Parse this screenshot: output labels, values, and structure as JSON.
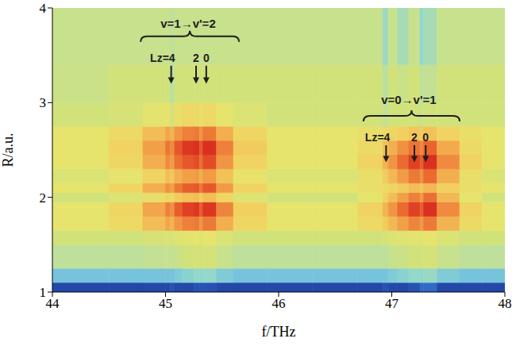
{
  "chart_data": {
    "type": "heatmap",
    "xlabel": "f/THz",
    "ylabel": "R/a.u.",
    "xlim": [
      44,
      48
    ],
    "ylim": [
      1,
      4
    ],
    "xticks": [
      44,
      45,
      46,
      47,
      48
    ],
    "yticks": [
      1,
      2,
      3,
      4
    ],
    "zlim": [
      0,
      1
    ],
    "x_edges": [
      44.0,
      44.5,
      44.8,
      45.0,
      45.04,
      45.08,
      45.15,
      45.25,
      45.3,
      45.33,
      45.45,
      45.6,
      45.9,
      46.3,
      46.7,
      46.92,
      46.97,
      47.05,
      47.15,
      47.25,
      47.28,
      47.4,
      47.6,
      47.8,
      48.0
    ],
    "y_edges": [
      1.0,
      1.1,
      1.25,
      1.5,
      1.65,
      1.8,
      1.95,
      2.05,
      2.15,
      2.3,
      2.45,
      2.6,
      2.75,
      3.0,
      3.4,
      4.0
    ],
    "cells": [
      [
        0.08,
        0.08,
        0.08,
        0.08,
        0.1,
        0.08,
        0.08,
        0.1,
        0.1,
        0.1,
        0.08,
        0.08,
        0.08,
        0.08,
        0.08,
        0.1,
        0.08,
        0.08,
        0.1,
        0.14,
        0.14,
        0.08,
        0.08,
        0.08
      ],
      [
        0.3,
        0.3,
        0.3,
        0.3,
        0.3,
        0.32,
        0.34,
        0.36,
        0.35,
        0.36,
        0.32,
        0.3,
        0.3,
        0.3,
        0.3,
        0.3,
        0.32,
        0.34,
        0.36,
        0.35,
        0.37,
        0.32,
        0.3,
        0.3
      ],
      [
        0.45,
        0.45,
        0.46,
        0.47,
        0.46,
        0.48,
        0.5,
        0.51,
        0.5,
        0.51,
        0.47,
        0.45,
        0.45,
        0.45,
        0.45,
        0.45,
        0.47,
        0.48,
        0.5,
        0.49,
        0.51,
        0.47,
        0.45,
        0.45
      ],
      [
        0.5,
        0.5,
        0.51,
        0.52,
        0.51,
        0.53,
        0.54,
        0.55,
        0.53,
        0.55,
        0.52,
        0.5,
        0.5,
        0.5,
        0.5,
        0.51,
        0.52,
        0.53,
        0.54,
        0.53,
        0.55,
        0.52,
        0.5,
        0.5
      ],
      [
        0.55,
        0.59,
        0.66,
        0.71,
        0.68,
        0.74,
        0.78,
        0.79,
        0.74,
        0.79,
        0.69,
        0.6,
        0.55,
        0.55,
        0.59,
        0.63,
        0.67,
        0.72,
        0.77,
        0.73,
        0.79,
        0.68,
        0.59,
        0.55
      ],
      [
        0.55,
        0.6,
        0.71,
        0.78,
        0.75,
        0.84,
        0.89,
        0.91,
        0.84,
        0.91,
        0.77,
        0.62,
        0.55,
        0.55,
        0.61,
        0.68,
        0.74,
        0.82,
        0.89,
        0.84,
        0.93,
        0.76,
        0.61,
        0.55
      ],
      [
        0.5,
        0.52,
        0.57,
        0.6,
        0.59,
        0.63,
        0.65,
        0.66,
        0.63,
        0.66,
        0.6,
        0.53,
        0.5,
        0.5,
        0.55,
        0.61,
        0.66,
        0.72,
        0.78,
        0.73,
        0.81,
        0.67,
        0.55,
        0.5
      ],
      [
        0.55,
        0.6,
        0.69,
        0.75,
        0.72,
        0.79,
        0.84,
        0.85,
        0.79,
        0.85,
        0.73,
        0.61,
        0.55,
        0.55,
        0.57,
        0.59,
        0.61,
        0.63,
        0.66,
        0.64,
        0.67,
        0.62,
        0.57,
        0.55
      ],
      [
        0.52,
        0.55,
        0.61,
        0.66,
        0.64,
        0.69,
        0.72,
        0.73,
        0.69,
        0.73,
        0.65,
        0.56,
        0.52,
        0.52,
        0.57,
        0.63,
        0.67,
        0.73,
        0.79,
        0.75,
        0.82,
        0.69,
        0.57,
        0.52
      ],
      [
        0.55,
        0.6,
        0.69,
        0.76,
        0.73,
        0.81,
        0.85,
        0.87,
        0.81,
        0.87,
        0.74,
        0.61,
        0.55,
        0.55,
        0.61,
        0.68,
        0.74,
        0.82,
        0.89,
        0.84,
        0.93,
        0.76,
        0.61,
        0.55
      ],
      [
        0.55,
        0.61,
        0.72,
        0.8,
        0.76,
        0.85,
        0.91,
        0.93,
        0.85,
        0.93,
        0.78,
        0.63,
        0.55,
        0.55,
        0.59,
        0.65,
        0.69,
        0.75,
        0.8,
        0.76,
        0.83,
        0.7,
        0.59,
        0.55
      ],
      [
        0.55,
        0.59,
        0.66,
        0.71,
        0.68,
        0.74,
        0.78,
        0.79,
        0.74,
        0.79,
        0.69,
        0.6,
        0.55,
        0.55,
        0.57,
        0.59,
        0.6,
        0.62,
        0.64,
        0.63,
        0.65,
        0.61,
        0.57,
        0.55
      ],
      [
        0.5,
        0.51,
        0.54,
        0.56,
        0.5,
        0.57,
        0.59,
        0.59,
        0.57,
        0.59,
        0.55,
        0.52,
        0.5,
        0.5,
        0.5,
        0.46,
        0.5,
        0.5,
        0.5,
        0.47,
        0.5,
        0.5,
        0.5,
        0.5
      ],
      [
        0.48,
        0.5,
        0.5,
        0.5,
        0.44,
        0.5,
        0.5,
        0.5,
        0.5,
        0.5,
        0.5,
        0.5,
        0.5,
        0.5,
        0.5,
        0.44,
        0.5,
        0.48,
        0.5,
        0.45,
        0.46,
        0.5,
        0.5,
        0.5
      ],
      [
        0.47,
        0.47,
        0.47,
        0.47,
        0.45,
        0.47,
        0.47,
        0.47,
        0.47,
        0.47,
        0.47,
        0.47,
        0.47,
        0.47,
        0.47,
        0.38,
        0.47,
        0.4,
        0.47,
        0.35,
        0.4,
        0.47,
        0.47,
        0.47
      ]
    ],
    "groups": [
      {
        "label": "v=1→v'=2",
        "label_x": 45.2,
        "label_y": 3.84,
        "brace": [
          44.78,
          45.65
        ],
        "brace_y": 3.7,
        "lines": [
          {
            "label": "Lz=4",
            "x": 45.05
          },
          {
            "label": "2",
            "x": 45.27
          },
          {
            "label": "0",
            "x": 45.36
          }
        ],
        "lines_label_y": 3.47,
        "arrow_y": [
          3.39,
          3.2
        ]
      },
      {
        "label": "v=0→v'=1",
        "label_x": 47.15,
        "label_y": 3.03,
        "brace": [
          46.75,
          47.6
        ],
        "brace_y": 2.86,
        "lines": [
          {
            "label": "Lz=4",
            "x": 46.95
          },
          {
            "label": "2",
            "x": 47.2
          },
          {
            "label": "0",
            "x": 47.3
          }
        ],
        "lines_label_y": 2.63,
        "arrow_y": [
          2.55,
          2.37
        ]
      }
    ]
  }
}
